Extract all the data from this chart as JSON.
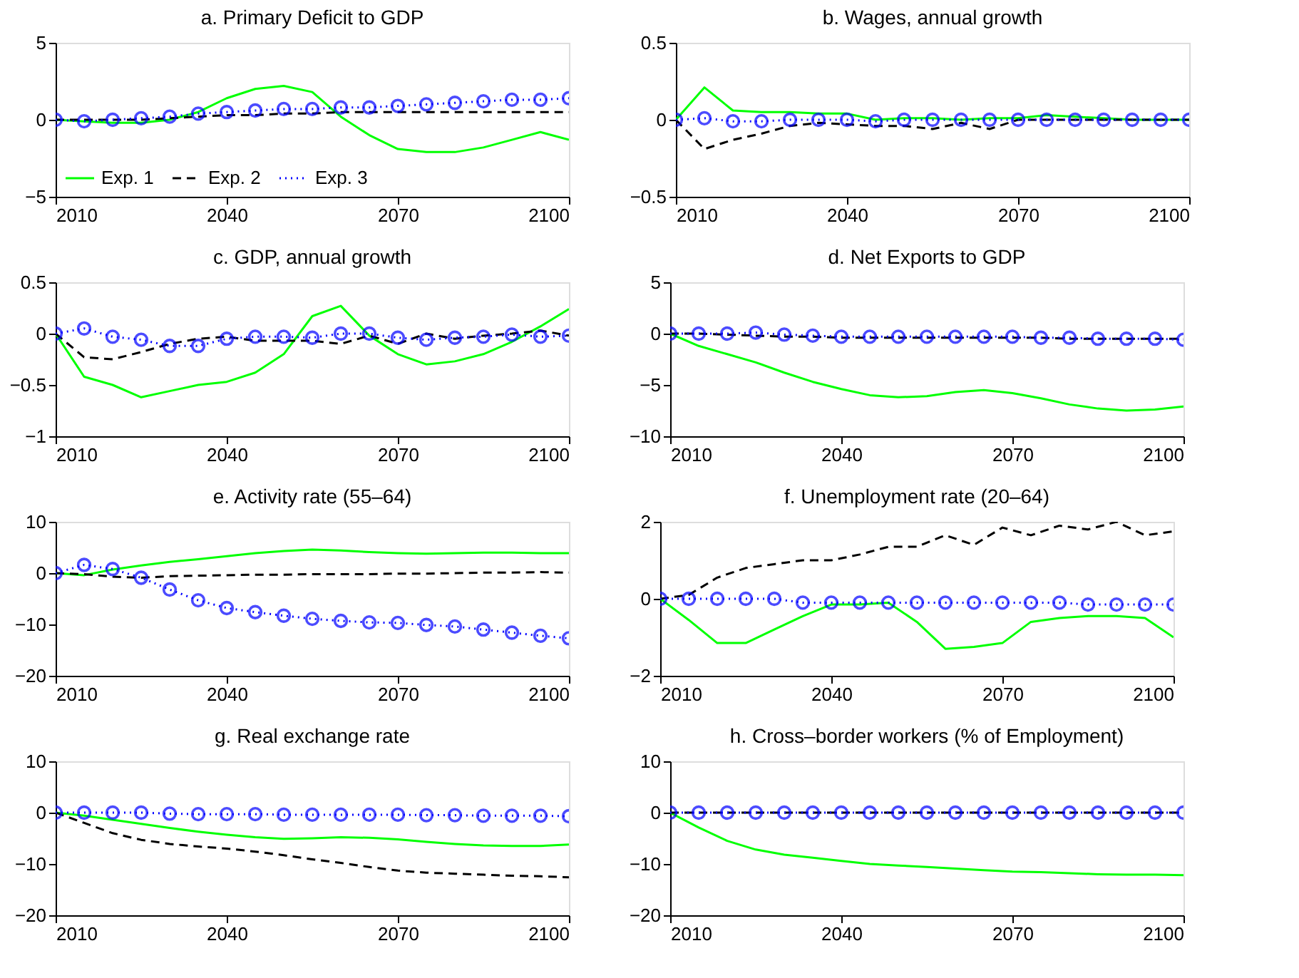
{
  "chart_data": [
    {
      "type": "line",
      "title": "a. Primary Deficit to GDP",
      "x": [
        2010,
        2015,
        2020,
        2025,
        2030,
        2035,
        2040,
        2045,
        2050,
        2055,
        2060,
        2065,
        2070,
        2075,
        2080,
        2085,
        2090,
        2095,
        2100
      ],
      "xlim": [
        2010,
        2100
      ],
      "xticks": [
        2010,
        2040,
        2070,
        2100
      ],
      "ylim": [
        -5,
        5
      ],
      "yticks": [
        -5,
        0,
        5
      ],
      "legend": "bottom left",
      "series": [
        {
          "name": "Exp. 1",
          "color": "#00ff00",
          "line_style": "solid",
          "marker": "none",
          "values": [
            0,
            -0.1,
            -0.2,
            -0.2,
            0,
            0.5,
            1.4,
            2.0,
            2.2,
            1.8,
            0.2,
            -1.0,
            -1.9,
            -2.1,
            -2.1,
            -1.8,
            -1.3,
            -0.8,
            -1.3
          ]
        },
        {
          "name": "Exp. 2",
          "color": "#000000",
          "line_style": "dashed",
          "marker": "none",
          "values": [
            0,
            0,
            0,
            0,
            0.1,
            0.2,
            0.3,
            0.3,
            0.4,
            0.4,
            0.5,
            0.5,
            0.5,
            0.5,
            0.5,
            0.5,
            0.5,
            0.5,
            0.5
          ]
        },
        {
          "name": "Exp. 3",
          "color": "#0000ff",
          "line_style": "dotted",
          "marker": "circle",
          "values": [
            0,
            -0.1,
            0,
            0.1,
            0.2,
            0.4,
            0.5,
            0.6,
            0.7,
            0.7,
            0.8,
            0.8,
            0.9,
            1.0,
            1.1,
            1.2,
            1.3,
            1.3,
            1.4
          ]
        }
      ]
    },
    {
      "type": "line",
      "title": "b. Wages, annual growth",
      "x": [
        2010,
        2015,
        2020,
        2025,
        2030,
        2035,
        2040,
        2045,
        2050,
        2055,
        2060,
        2065,
        2070,
        2075,
        2080,
        2085,
        2090,
        2095,
        2100
      ],
      "xlim": [
        2010,
        2100
      ],
      "xticks": [
        2010,
        2040,
        2070,
        2100
      ],
      "ylim": [
        -0.5,
        0.5
      ],
      "yticks": [
        -0.5,
        0,
        0.5
      ],
      "series": [
        {
          "color": "#00ff00",
          "line_style": "solid",
          "marker": "none",
          "values": [
            0,
            0.21,
            0.06,
            0.05,
            0.05,
            0.04,
            0.04,
            0.0,
            0.01,
            0.01,
            0.0,
            0.01,
            0.01,
            0.03,
            0.02,
            0.01,
            0.0,
            0.0,
            0.0
          ]
        },
        {
          "color": "#000000",
          "line_style": "dashed",
          "marker": "none",
          "values": [
            0,
            -0.19,
            -0.13,
            -0.09,
            -0.04,
            -0.02,
            -0.03,
            -0.04,
            -0.04,
            -0.06,
            -0.02,
            -0.06,
            0.0,
            0.0,
            0.0,
            0.0,
            0.0,
            0.0,
            0.0
          ]
        },
        {
          "color": "#0000ff",
          "line_style": "dotted",
          "marker": "circle",
          "values": [
            0,
            0.01,
            -0.01,
            -0.01,
            0,
            0,
            0,
            -0.01,
            0,
            0,
            0,
            0,
            0,
            0,
            0,
            0,
            0,
            0,
            0
          ]
        }
      ]
    },
    {
      "type": "line",
      "title": "c. GDP, annual growth",
      "x": [
        2010,
        2015,
        2020,
        2025,
        2030,
        2035,
        2040,
        2045,
        2050,
        2055,
        2060,
        2065,
        2070,
        2075,
        2080,
        2085,
        2090,
        2095,
        2100
      ],
      "xlim": [
        2010,
        2100
      ],
      "xticks": [
        2010,
        2040,
        2070,
        2100
      ],
      "ylim": [
        -1,
        0.5
      ],
      "yticks": [
        -1,
        -0.5,
        0,
        0.5
      ],
      "series": [
        {
          "color": "#00ff00",
          "line_style": "solid",
          "marker": "none",
          "values": [
            0,
            -0.42,
            -0.5,
            -0.62,
            -0.56,
            -0.5,
            -0.47,
            -0.38,
            -0.2,
            0.17,
            0.27,
            -0.02,
            -0.2,
            -0.3,
            -0.27,
            -0.2,
            -0.08,
            0.07,
            0.24
          ]
        },
        {
          "color": "#000000",
          "line_style": "dashed",
          "marker": "none",
          "values": [
            0,
            -0.23,
            -0.25,
            -0.18,
            -0.1,
            -0.05,
            -0.03,
            -0.07,
            -0.07,
            -0.07,
            -0.1,
            -0.02,
            -0.1,
            0.0,
            -0.05,
            -0.02,
            0.0,
            0.03,
            -0.02
          ]
        },
        {
          "color": "#0000ff",
          "line_style": "dotted",
          "marker": "circle",
          "values": [
            0,
            0.05,
            -0.03,
            -0.06,
            -0.12,
            -0.12,
            -0.05,
            -0.03,
            -0.03,
            -0.04,
            0.0,
            0.0,
            -0.04,
            -0.06,
            -0.04,
            -0.03,
            -0.01,
            -0.03,
            -0.02
          ]
        }
      ]
    },
    {
      "type": "line",
      "title": "d. Net Exports to GDP",
      "x": [
        2010,
        2015,
        2020,
        2025,
        2030,
        2035,
        2040,
        2045,
        2050,
        2055,
        2060,
        2065,
        2070,
        2075,
        2080,
        2085,
        2090,
        2095,
        2100
      ],
      "xlim": [
        2010,
        2100
      ],
      "xticks": [
        2010,
        2040,
        2070,
        2100
      ],
      "ylim": [
        -10,
        5
      ],
      "yticks": [
        -10,
        -5,
        0,
        5
      ],
      "series": [
        {
          "color": "#00ff00",
          "line_style": "solid",
          "marker": "none",
          "values": [
            0,
            -1.2,
            -2.0,
            -2.8,
            -3.8,
            -4.7,
            -5.4,
            -6.0,
            -6.2,
            -6.1,
            -5.7,
            -5.5,
            -5.8,
            -6.3,
            -6.9,
            -7.3,
            -7.5,
            -7.4,
            -7.1
          ]
        },
        {
          "color": "#000000",
          "line_style": "dashed",
          "marker": "none",
          "values": [
            0,
            0,
            -0.1,
            -0.2,
            -0.3,
            -0.3,
            -0.4,
            -0.4,
            -0.4,
            -0.4,
            -0.4,
            -0.4,
            -0.4,
            -0.4,
            -0.5,
            -0.5,
            -0.5,
            -0.5,
            -0.5
          ]
        },
        {
          "color": "#0000ff",
          "line_style": "dotted",
          "marker": "circle",
          "values": [
            0,
            0,
            0,
            0.1,
            -0.1,
            -0.2,
            -0.3,
            -0.3,
            -0.3,
            -0.3,
            -0.3,
            -0.3,
            -0.3,
            -0.4,
            -0.4,
            -0.5,
            -0.5,
            -0.5,
            -0.6
          ]
        }
      ]
    },
    {
      "type": "line",
      "title": "e. Activity rate (55–64)",
      "x": [
        2010,
        2015,
        2020,
        2025,
        2030,
        2035,
        2040,
        2045,
        2050,
        2055,
        2060,
        2065,
        2070,
        2075,
        2080,
        2085,
        2090,
        2095,
        2100
      ],
      "xlim": [
        2010,
        2100
      ],
      "xticks": [
        2010,
        2040,
        2070,
        2100
      ],
      "ylim": [
        -20,
        10
      ],
      "yticks": [
        -20,
        -10,
        0,
        10
      ],
      "series": [
        {
          "color": "#00ff00",
          "line_style": "solid",
          "marker": "none",
          "values": [
            0,
            -0.4,
            0.7,
            1.5,
            2.2,
            2.7,
            3.3,
            3.9,
            4.3,
            4.6,
            4.4,
            4.1,
            3.9,
            3.8,
            3.9,
            4.0,
            4.0,
            3.9,
            3.9
          ]
        },
        {
          "color": "#000000",
          "line_style": "dashed",
          "marker": "none",
          "values": [
            0,
            -0.2,
            -0.7,
            -0.9,
            -0.6,
            -0.5,
            -0.4,
            -0.3,
            -0.3,
            -0.2,
            -0.2,
            -0.2,
            -0.1,
            -0.1,
            0,
            0.1,
            0.1,
            0.2,
            0.1
          ]
        },
        {
          "color": "#0000ff",
          "line_style": "dotted",
          "marker": "circle",
          "values": [
            0,
            1.6,
            0.8,
            -0.9,
            -3.2,
            -5.3,
            -6.8,
            -7.6,
            -8.3,
            -8.9,
            -9.3,
            -9.6,
            -9.7,
            -10.1,
            -10.4,
            -11.0,
            -11.6,
            -12.2,
            -12.7
          ]
        }
      ]
    },
    {
      "type": "line",
      "title": "f. Unemployment rate (20–64)",
      "x": [
        2010,
        2015,
        2020,
        2025,
        2030,
        2035,
        2040,
        2045,
        2050,
        2055,
        2060,
        2065,
        2070,
        2075,
        2080,
        2085,
        2090,
        2095,
        2100
      ],
      "xlim": [
        2010,
        2100
      ],
      "xticks": [
        2010,
        2040,
        2070,
        2100
      ],
      "ylim": [
        -2,
        2
      ],
      "yticks": [
        -2,
        0,
        2
      ],
      "series": [
        {
          "color": "#00ff00",
          "line_style": "solid",
          "marker": "none",
          "values": [
            0,
            -0.55,
            -1.15,
            -1.15,
            -0.8,
            -0.45,
            -0.15,
            -0.15,
            -0.1,
            -0.6,
            -1.3,
            -1.25,
            -1.15,
            -0.6,
            -0.5,
            -0.45,
            -0.45,
            -0.5,
            -1.0
          ]
        },
        {
          "color": "#000000",
          "line_style": "dashed",
          "marker": "none",
          "values": [
            0,
            0.1,
            0.55,
            0.8,
            0.9,
            1.0,
            1.0,
            1.15,
            1.35,
            1.35,
            1.65,
            1.4,
            1.85,
            1.65,
            1.9,
            1.8,
            2.0,
            1.65,
            1.75
          ]
        },
        {
          "color": "#0000ff",
          "line_style": "dotted",
          "marker": "circle",
          "values": [
            0,
            0,
            0,
            0,
            0,
            -0.1,
            -0.1,
            -0.1,
            -0.1,
            -0.1,
            -0.1,
            -0.1,
            -0.1,
            -0.1,
            -0.1,
            -0.15,
            -0.15,
            -0.15,
            -0.15
          ]
        }
      ]
    },
    {
      "type": "line",
      "title": "g. Real exchange rate",
      "x": [
        2010,
        2015,
        2020,
        2025,
        2030,
        2035,
        2040,
        2045,
        2050,
        2055,
        2060,
        2065,
        2070,
        2075,
        2080,
        2085,
        2090,
        2095,
        2100
      ],
      "xlim": [
        2010,
        2100
      ],
      "xticks": [
        2010,
        2040,
        2070,
        2100
      ],
      "ylim": [
        -20,
        10
      ],
      "yticks": [
        -20,
        -10,
        0,
        10
      ],
      "series": [
        {
          "color": "#00ff00",
          "line_style": "solid",
          "marker": "none",
          "values": [
            0,
            -0.6,
            -1.4,
            -2.2,
            -3.0,
            -3.7,
            -4.3,
            -4.8,
            -5.1,
            -5.0,
            -4.8,
            -4.9,
            -5.2,
            -5.7,
            -6.1,
            -6.4,
            -6.5,
            -6.5,
            -6.2
          ]
        },
        {
          "color": "#000000",
          "line_style": "dashed",
          "marker": "none",
          "values": [
            0,
            -2.0,
            -4.0,
            -5.3,
            -6.1,
            -6.6,
            -7.0,
            -7.6,
            -8.3,
            -9.1,
            -9.8,
            -10.6,
            -11.3,
            -11.7,
            -11.9,
            -12.1,
            -12.3,
            -12.4,
            -12.6
          ]
        },
        {
          "color": "#0000ff",
          "line_style": "dotted",
          "marker": "circle",
          "values": [
            0,
            0,
            0,
            0,
            -0.2,
            -0.3,
            -0.3,
            -0.3,
            -0.4,
            -0.4,
            -0.4,
            -0.4,
            -0.4,
            -0.5,
            -0.5,
            -0.6,
            -0.6,
            -0.6,
            -0.7
          ]
        }
      ]
    },
    {
      "type": "line",
      "title": "h. Cross–border workers (% of Employment)",
      "x": [
        2010,
        2015,
        2020,
        2025,
        2030,
        2035,
        2040,
        2045,
        2050,
        2055,
        2060,
        2065,
        2070,
        2075,
        2080,
        2085,
        2090,
        2095,
        2100
      ],
      "xlim": [
        2010,
        2100
      ],
      "xticks": [
        2010,
        2040,
        2070,
        2100
      ],
      "ylim": [
        -20,
        10
      ],
      "yticks": [
        -20,
        -10,
        0,
        10
      ],
      "series": [
        {
          "color": "#00ff00",
          "line_style": "solid",
          "marker": "none",
          "values": [
            0,
            -2.9,
            -5.5,
            -7.2,
            -8.2,
            -8.8,
            -9.4,
            -10.0,
            -10.3,
            -10.6,
            -10.9,
            -11.2,
            -11.5,
            -11.6,
            -11.8,
            -12.0,
            -12.1,
            -12.1,
            -12.2
          ]
        },
        {
          "color": "#000000",
          "line_style": "dashed",
          "marker": "none",
          "values": [
            0,
            0,
            0,
            0,
            0,
            0,
            0,
            0,
            0,
            0,
            0,
            0,
            0,
            0,
            0,
            0,
            0,
            0,
            0
          ]
        },
        {
          "color": "#0000ff",
          "line_style": "dotted",
          "marker": "circle",
          "values": [
            0,
            0,
            0,
            0,
            0,
            0,
            0,
            0,
            0,
            0,
            0,
            0,
            0,
            0,
            0,
            0,
            0,
            0,
            0
          ]
        }
      ]
    }
  ]
}
